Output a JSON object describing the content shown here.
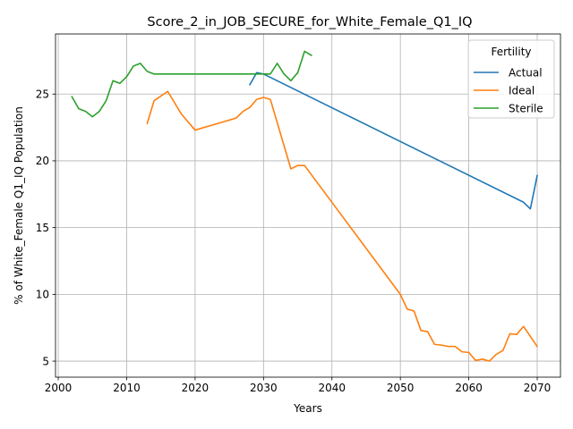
{
  "chart_data": {
    "type": "line",
    "title": "Score_2_in_JOB_SECURE_for_White_Female_Q1_IQ",
    "xlabel": "Years",
    "ylabel": "% of White_Female Q1_IQ Population",
    "xlim": [
      1999.6,
      2073.4
    ],
    "ylim": [
      3.8,
      29.5
    ],
    "xticks": [
      2000,
      2010,
      2020,
      2030,
      2040,
      2050,
      2060,
      2070
    ],
    "yticks": [
      5,
      10,
      15,
      20,
      25
    ],
    "grid": true,
    "legend": {
      "title": "Fertility",
      "position": "top-right"
    },
    "series": [
      {
        "name": "Actual",
        "color": "#1f77b4",
        "points": [
          [
            2028,
            25.7
          ],
          [
            2029,
            26.6
          ],
          [
            2030,
            26.5
          ],
          [
            2068,
            16.9
          ],
          [
            2069,
            16.4
          ],
          [
            2070,
            18.9
          ]
        ]
      },
      {
        "name": "Ideal",
        "color": "#ff7f0e",
        "points": [
          [
            2013,
            22.8
          ],
          [
            2014,
            24.5
          ],
          [
            2016,
            25.2
          ],
          [
            2018,
            23.5
          ],
          [
            2020,
            22.3
          ],
          [
            2026,
            23.2
          ],
          [
            2027,
            23.7
          ],
          [
            2028,
            24.0
          ],
          [
            2029,
            24.6
          ],
          [
            2030,
            24.75
          ],
          [
            2031,
            24.6
          ],
          [
            2034,
            19.4
          ],
          [
            2035,
            19.65
          ],
          [
            2036,
            19.65
          ],
          [
            2050,
            10.0
          ],
          [
            2051,
            8.9
          ],
          [
            2052,
            8.75
          ],
          [
            2053,
            7.3
          ],
          [
            2054,
            7.2
          ],
          [
            2055,
            6.25
          ],
          [
            2056,
            6.2
          ],
          [
            2057,
            6.1
          ],
          [
            2058,
            6.1
          ],
          [
            2059,
            5.7
          ],
          [
            2060,
            5.65
          ],
          [
            2061,
            5.05
          ],
          [
            2062,
            5.15
          ],
          [
            2063,
            5.0
          ],
          [
            2064,
            5.5
          ],
          [
            2065,
            5.8
          ],
          [
            2066,
            7.05
          ],
          [
            2067,
            7.0
          ],
          [
            2068,
            7.6
          ],
          [
            2070,
            6.1
          ]
        ]
      },
      {
        "name": "Sterile",
        "color": "#2ca02c",
        "points": [
          [
            2002,
            24.8
          ],
          [
            2003,
            23.9
          ],
          [
            2004,
            23.7
          ],
          [
            2005,
            23.3
          ],
          [
            2006,
            23.7
          ],
          [
            2007,
            24.5
          ],
          [
            2008,
            26.0
          ],
          [
            2009,
            25.8
          ],
          [
            2010,
            26.3
          ],
          [
            2011,
            27.1
          ],
          [
            2012,
            27.3
          ],
          [
            2013,
            26.7
          ],
          [
            2014,
            26.5
          ],
          [
            2031,
            26.5
          ],
          [
            2032,
            27.3
          ],
          [
            2033,
            26.5
          ],
          [
            2034,
            26.0
          ],
          [
            2035,
            26.6
          ],
          [
            2036,
            28.2
          ],
          [
            2037,
            27.9
          ]
        ]
      }
    ]
  }
}
